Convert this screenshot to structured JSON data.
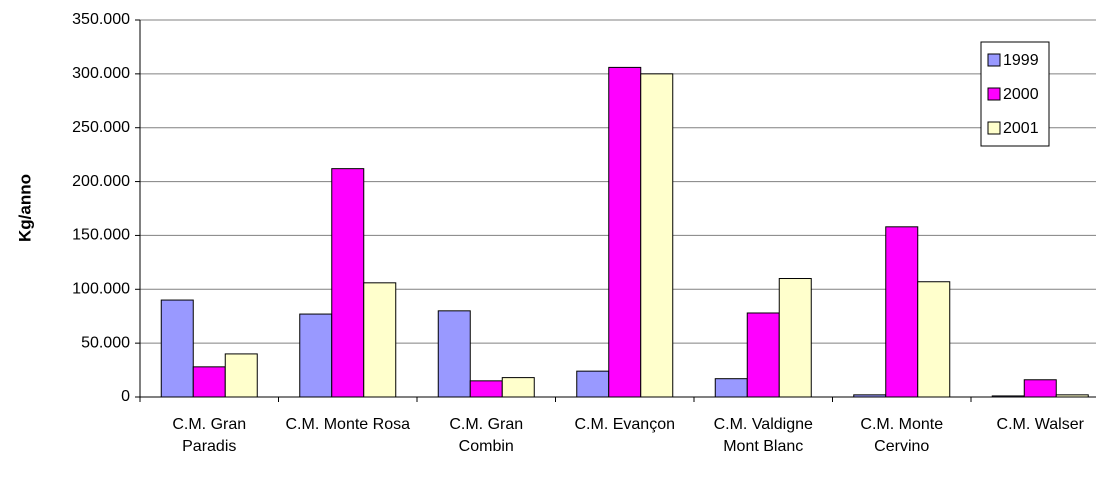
{
  "chart_data": {
    "type": "bar",
    "y_label": "Kg/anno",
    "categories": [
      "C.M. Gran Paradis",
      "C.M. Monte Rosa",
      "C.M. Gran Combin",
      "C.M. Evançon",
      "C.M. Valdigne Mont Blanc",
      "C.M. Monte Cervino",
      "C.M. Walser"
    ],
    "series": [
      {
        "name": "1999",
        "color": "#9999ff",
        "values": [
          90000,
          77000,
          80000,
          24000,
          17000,
          2000,
          1000
        ]
      },
      {
        "name": "2000",
        "color": "#ff00ff",
        "values": [
          28000,
          212000,
          15000,
          306000,
          78000,
          158000,
          16000
        ]
      },
      {
        "name": "2001",
        "color": "#ffffcc",
        "values": [
          40000,
          106000,
          18000,
          300000,
          110000,
          107000,
          2000
        ]
      }
    ],
    "ylim": [
      0,
      350000
    ],
    "yticks": [
      0,
      {
        "value": 50000,
        "label": "50.000"
      },
      {
        "value": 100000,
        "label": "100.000"
      },
      {
        "value": 150000,
        "label": "150.000"
      },
      {
        "value": 200000,
        "label": "200.000"
      },
      {
        "value": 250000,
        "label": "250.000"
      },
      {
        "value": 300000,
        "label": "300.000"
      },
      {
        "value": 350000,
        "label": "350.000"
      }
    ],
    "grid": true,
    "legend_position": "upper right"
  }
}
